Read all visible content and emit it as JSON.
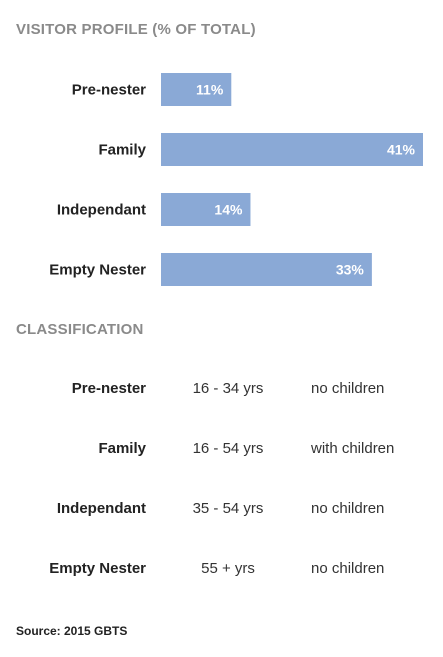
{
  "chart_data": {
    "type": "bar",
    "orientation": "horizontal",
    "title": "VISITOR PROFILE (% OF TOTAL)",
    "categories": [
      "Pre-nester",
      "Family",
      "Independant",
      "Empty Nester"
    ],
    "values": [
      11,
      41,
      14,
      33
    ],
    "value_labels": [
      "11%",
      "41%",
      "14%",
      "33%"
    ],
    "xlim": [
      0,
      41
    ],
    "grid": false,
    "bar_color": "#8aa9d6"
  },
  "classification": {
    "title": "CLASSIFICATION",
    "rows": [
      {
        "name": "Pre-nester",
        "age": "16 - 34 yrs",
        "children": "no children"
      },
      {
        "name": "Family",
        "age": "16 - 54 yrs",
        "children": "with children"
      },
      {
        "name": "Independant",
        "age": "35 - 54 yrs",
        "children": "no children"
      },
      {
        "name": "Empty Nester",
        "age": "55 + yrs",
        "children": "no children"
      }
    ]
  },
  "source": "Source: 2015 GBTS"
}
